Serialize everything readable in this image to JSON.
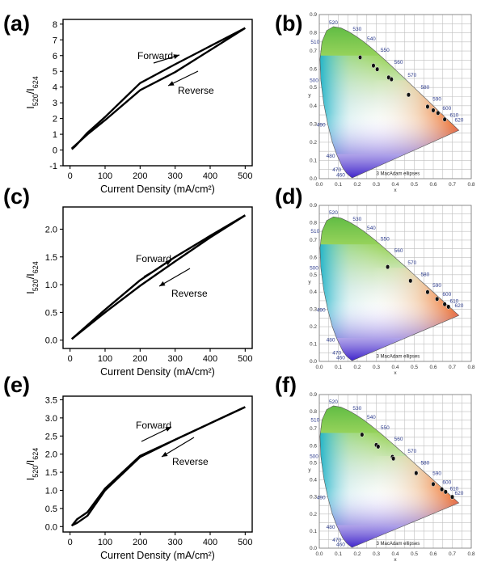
{
  "panels": [
    {
      "label": "(a)"
    },
    {
      "label": "(b)"
    },
    {
      "label": "(c)"
    },
    {
      "label": "(d)"
    },
    {
      "label": "(e)"
    },
    {
      "label": "(f)"
    }
  ],
  "chart_data": [
    {
      "id": "a",
      "type": "line",
      "xlabel": "Current Density (mA/cm²)",
      "ylabel_main": "I",
      "ylabel_sub1": "520",
      "ylabel_mid": "/I",
      "ylabel_sub2": "624",
      "xlim": [
        -20,
        520
      ],
      "ylim": [
        -1,
        8.3
      ],
      "xticks": [
        0,
        100,
        200,
        300,
        400,
        500
      ],
      "yticks": [
        -1,
        0,
        1,
        2,
        3,
        4,
        5,
        6,
        7,
        8
      ],
      "series": [
        {
          "name": "Forward",
          "x": [
            5,
            15,
            50,
            100,
            200,
            300,
            400,
            500
          ],
          "y": [
            0.05,
            0.25,
            1.1,
            2.1,
            4.25,
            5.45,
            6.6,
            7.75
          ]
        },
        {
          "name": "Reverse",
          "x": [
            500,
            400,
            300,
            200,
            100,
            50,
            15,
            5
          ],
          "y": [
            7.75,
            6.35,
            4.95,
            3.8,
            1.9,
            1.0,
            0.3,
            0.1
          ]
        }
      ],
      "annotations": [
        {
          "text": "Forward"
        },
        {
          "text": "Reverse"
        }
      ]
    },
    {
      "id": "b",
      "type": "scatter",
      "xlabel": "x",
      "ylabel": "y",
      "xlim": [
        0,
        0.8
      ],
      "ylim": [
        0,
        0.9
      ],
      "wavelength_labels": [
        "460",
        "470",
        "480",
        "490",
        "500",
        "510",
        "520",
        "530",
        "540",
        "550",
        "560",
        "570",
        "580",
        "590",
        "600",
        "610",
        "620"
      ],
      "note": "3 MacAdam ellipses",
      "x": [
        0.215,
        0.285,
        0.305,
        0.365,
        0.38,
        0.47,
        0.57,
        0.6,
        0.625,
        0.66
      ],
      "y": [
        0.665,
        0.62,
        0.6,
        0.555,
        0.545,
        0.46,
        0.395,
        0.375,
        0.36,
        0.325
      ]
    },
    {
      "id": "c",
      "type": "line",
      "xlabel": "Current Density (mA/cm²)",
      "ylabel_main": "I",
      "ylabel_sub1": "520",
      "ylabel_mid": "/I",
      "ylabel_sub2": "624",
      "xlim": [
        -20,
        520
      ],
      "ylim": [
        -0.15,
        2.4
      ],
      "xticks": [
        0,
        100,
        200,
        300,
        400,
        500
      ],
      "yticks": [
        0.0,
        0.5,
        1.0,
        1.5,
        2.0
      ],
      "series": [
        {
          "name": "Forward",
          "x": [
            5,
            100,
            200,
            300,
            400,
            500
          ],
          "y": [
            0.02,
            0.55,
            1.08,
            1.5,
            1.88,
            2.25
          ]
        },
        {
          "name": "Reverse",
          "x": [
            500,
            400,
            300,
            200,
            100,
            5
          ],
          "y": [
            2.25,
            1.85,
            1.42,
            0.98,
            0.5,
            0.02
          ]
        }
      ],
      "annotations": [
        {
          "text": "Forward"
        },
        {
          "text": "Reverse"
        }
      ]
    },
    {
      "id": "d",
      "type": "scatter",
      "xlabel": "x",
      "ylabel": "y",
      "xlim": [
        0,
        0.8
      ],
      "ylim": [
        0,
        0.9
      ],
      "wavelength_labels": [
        "460",
        "470",
        "480",
        "490",
        "500",
        "510",
        "520",
        "530",
        "540",
        "550",
        "560",
        "570",
        "580",
        "590",
        "600",
        "610",
        "620"
      ],
      "note": "3 MacAdam ellipses",
      "x": [
        0.36,
        0.48,
        0.57,
        0.62,
        0.66,
        0.68
      ],
      "y": [
        0.545,
        0.465,
        0.4,
        0.36,
        0.33,
        0.315
      ]
    },
    {
      "id": "e",
      "type": "line",
      "xlabel": "Current Density (mA/cm²)",
      "ylabel_main": "I",
      "ylabel_sub1": "520",
      "ylabel_mid": "/I",
      "ylabel_sub2": "624",
      "xlim": [
        -20,
        520
      ],
      "ylim": [
        -0.15,
        3.6
      ],
      "xticks": [
        0,
        100,
        200,
        300,
        400,
        500
      ],
      "yticks": [
        0.0,
        0.5,
        1.0,
        1.5,
        2.0,
        2.5,
        3.0,
        3.5
      ],
      "series": [
        {
          "name": "Forward",
          "x": [
            5,
            20,
            50,
            100,
            200,
            300,
            400,
            500
          ],
          "y": [
            0.02,
            0.2,
            0.4,
            1.05,
            1.95,
            2.4,
            2.85,
            3.3
          ]
        },
        {
          "name": "Reverse",
          "x": [
            500,
            400,
            300,
            200,
            100,
            50,
            20,
            5
          ],
          "y": [
            3.3,
            2.85,
            2.4,
            1.92,
            1.0,
            0.3,
            0.1,
            0.03
          ]
        }
      ],
      "annotations": [
        {
          "text": "Forward"
        },
        {
          "text": "Reverse"
        }
      ]
    },
    {
      "id": "f",
      "type": "scatter",
      "xlabel": "x",
      "ylabel": "y",
      "xlim": [
        0,
        0.8
      ],
      "ylim": [
        0,
        0.9
      ],
      "wavelength_labels": [
        "460",
        "470",
        "480",
        "490",
        "500",
        "510",
        "520",
        "530",
        "540",
        "550",
        "560",
        "570",
        "580",
        "590",
        "600",
        "610",
        "620"
      ],
      "note": "3 MacAdam ellipses",
      "x": [
        0.225,
        0.3,
        0.31,
        0.385,
        0.39,
        0.51,
        0.6,
        0.645,
        0.665,
        0.7
      ],
      "y": [
        0.665,
        0.605,
        0.595,
        0.535,
        0.525,
        0.44,
        0.375,
        0.345,
        0.33,
        0.3
      ]
    }
  ]
}
